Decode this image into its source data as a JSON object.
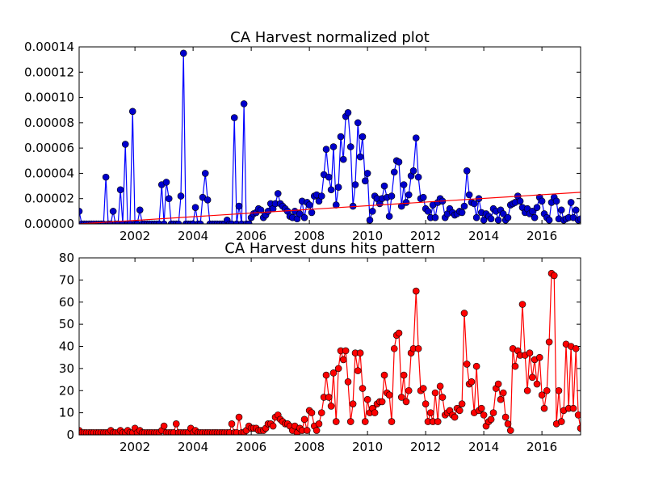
{
  "chart_data": [
    {
      "type": "line",
      "title": "CA Harvest normalized plot",
      "x": [
        2000.08,
        2000.17,
        2000.25,
        2000.33,
        2000.42,
        2000.5,
        2000.58,
        2000.67,
        2000.75,
        2000.83,
        2000.92,
        2001.0,
        2001.08,
        2001.17,
        2001.25,
        2001.33,
        2001.42,
        2001.5,
        2001.58,
        2001.67,
        2001.75,
        2001.83,
        2001.92,
        2002.0,
        2002.08,
        2002.17,
        2002.25,
        2002.33,
        2002.42,
        2002.5,
        2002.58,
        2002.67,
        2002.75,
        2002.83,
        2002.92,
        2003.0,
        2003.08,
        2003.17,
        2003.25,
        2003.33,
        2003.42,
        2003.5,
        2003.58,
        2003.67,
        2003.75,
        2003.83,
        2003.92,
        2004.0,
        2004.08,
        2004.17,
        2004.25,
        2004.33,
        2004.42,
        2004.5,
        2004.58,
        2004.67,
        2004.75,
        2004.83,
        2004.92,
        2005.0,
        2005.08,
        2005.17,
        2005.25,
        2005.33,
        2005.42,
        2005.5,
        2005.58,
        2005.67,
        2005.75,
        2005.83,
        2005.92,
        2006.0,
        2006.08,
        2006.17,
        2006.25,
        2006.33,
        2006.42,
        2006.5,
        2006.58,
        2006.67,
        2006.75,
        2006.83,
        2006.92,
        2007.0,
        2007.08,
        2007.17,
        2007.25,
        2007.33,
        2007.42,
        2007.5,
        2007.58,
        2007.67,
        2007.75,
        2007.83,
        2007.92,
        2008.0,
        2008.08,
        2008.17,
        2008.25,
        2008.33,
        2008.42,
        2008.5,
        2008.58,
        2008.67,
        2008.75,
        2008.83,
        2008.92,
        2009.0,
        2009.08,
        2009.17,
        2009.25,
        2009.33,
        2009.42,
        2009.5,
        2009.58,
        2009.67,
        2009.75,
        2009.83,
        2009.92,
        2010.0,
        2010.08,
        2010.17,
        2010.25,
        2010.33,
        2010.42,
        2010.5,
        2010.58,
        2010.67,
        2010.75,
        2010.83,
        2010.92,
        2011.0,
        2011.08,
        2011.17,
        2011.25,
        2011.33,
        2011.42,
        2011.5,
        2011.58,
        2011.67,
        2011.75,
        2011.83,
        2011.92,
        2012.0,
        2012.08,
        2012.17,
        2012.25,
        2012.33,
        2012.42,
        2012.5,
        2012.58,
        2012.67,
        2012.75,
        2012.83,
        2012.92,
        2013.0,
        2013.08,
        2013.17,
        2013.25,
        2013.33,
        2013.42,
        2013.5,
        2013.58,
        2013.67,
        2013.75,
        2013.83,
        2013.92,
        2014.0,
        2014.08,
        2014.17,
        2014.25,
        2014.33,
        2014.42,
        2014.5,
        2014.58,
        2014.67,
        2014.75,
        2014.83,
        2014.92,
        2015.0,
        2015.08,
        2015.17,
        2015.25,
        2015.33,
        2015.42,
        2015.5,
        2015.58,
        2015.67,
        2015.75,
        2015.83,
        2015.92,
        2016.0,
        2016.08,
        2016.17,
        2016.25,
        2016.33,
        2016.42,
        2016.5,
        2016.58,
        2016.67,
        2016.75,
        2016.83,
        2016.92,
        2017.0,
        2017.08,
        2017.17,
        2017.25,
        2017.33
      ],
      "series": [
        {
          "color": "#0000ff",
          "values": [
            1e-05,
            0,
            0,
            0,
            0,
            0,
            0,
            0,
            0,
            0,
            0,
            3.7e-05,
            0,
            0,
            1e-05,
            0,
            0,
            2.7e-05,
            0,
            6.3e-05,
            0,
            0,
            8.9e-05,
            0,
            0,
            1.1e-05,
            0,
            0,
            0,
            0,
            0,
            0,
            0,
            0,
            3.1e-05,
            0,
            3.3e-05,
            2e-05,
            0,
            0,
            0,
            0,
            2.2e-05,
            0.000135,
            0,
            0,
            0,
            0,
            1.3e-05,
            0,
            0,
            2.1e-05,
            4e-05,
            1.9e-05,
            0,
            0,
            0,
            0,
            0,
            0,
            0,
            3e-06,
            0,
            0,
            8.4e-05,
            0,
            1.4e-05,
            0,
            9.5e-05,
            0,
            0,
            5e-06,
            8e-06,
            9e-06,
            1.2e-05,
            1.1e-05,
            5e-06,
            7e-06,
            1e-05,
            1.6e-05,
            1.2e-05,
            1.6e-05,
            2.4e-05,
            1.6e-05,
            1.4e-05,
            1.2e-05,
            1e-05,
            6e-06,
            5e-06,
            1e-05,
            4e-06,
            8e-06,
            1.8e-05,
            5e-06,
            1.7e-05,
            1.5e-05,
            9e-06,
            2.2e-05,
            2.3e-05,
            1.8e-05,
            2.2e-05,
            3.9e-05,
            5.9e-05,
            3.7e-05,
            2.7e-05,
            6.1e-05,
            1.5e-05,
            2.9e-05,
            6.9e-05,
            5.1e-05,
            8.5e-05,
            8.8e-05,
            6.1e-05,
            1.4e-05,
            3.1e-05,
            8e-05,
            5.3e-05,
            6.9e-05,
            3.4e-05,
            4e-05,
            3e-06,
            1e-05,
            2.2e-05,
            2e-05,
            1.6e-05,
            2e-05,
            3e-05,
            2.1e-05,
            6e-06,
            2.2e-05,
            4.1e-05,
            5e-05,
            4.9e-05,
            1.4e-05,
            3.1e-05,
            1.7e-05,
            2.3e-05,
            3.8e-05,
            4.2e-05,
            6.8e-05,
            3.7e-05,
            2e-05,
            2.1e-05,
            1.2e-05,
            1e-05,
            5e-06,
            1.5e-05,
            5e-06,
            1.7e-05,
            2e-05,
            1.8e-05,
            5e-06,
            8e-06,
            1.2e-05,
            9e-06,
            7e-06,
            8e-06,
            1e-05,
            9e-06,
            1.4e-05,
            4.2e-05,
            2.3e-05,
            1.7e-05,
            1.6e-05,
            5e-06,
            2e-05,
            9e-06,
            3e-06,
            8e-06,
            6e-06,
            4e-06,
            1.2e-05,
            1e-05,
            3e-06,
            1.1e-05,
            8e-06,
            3e-06,
            5e-06,
            1.5e-05,
            1.6e-05,
            1.7e-05,
            2.2e-05,
            1.8e-05,
            1.3e-05,
            9e-06,
            1.2e-05,
            8e-06,
            1e-05,
            5e-06,
            1.3e-05,
            2.1e-05,
            1.8e-05,
            8e-06,
            5e-06,
            3e-06,
            1.7e-05,
            2.1e-05,
            1.8e-05,
            4e-06,
            1.1e-05,
            3e-06,
            4e-06,
            5e-06,
            1.7e-05,
            5e-06,
            1.1e-05,
            3e-06,
            4e-06
          ]
        },
        {
          "color": "#ff0000",
          "x": [
            2000.08,
            2017.33
          ],
          "values": [
            0,
            2.5e-05
          ]
        }
      ],
      "xlim": [
        2000.08,
        2017.33
      ],
      "xticks": [
        2002,
        2004,
        2006,
        2008,
        2010,
        2012,
        2014,
        2016
      ],
      "ylim": [
        0,
        0.00014
      ],
      "yticks": [
        {
          "value": 0,
          "label": "0.00000"
        },
        {
          "value": 2e-05,
          "label": "0.00002"
        },
        {
          "value": 4e-05,
          "label": "0.00004"
        },
        {
          "value": 6e-05,
          "label": "0.00006"
        },
        {
          "value": 8e-05,
          "label": "0.00008"
        },
        {
          "value": 0.0001,
          "label": "0.00010"
        },
        {
          "value": 0.00012,
          "label": "0.00012"
        },
        {
          "value": 0.00014,
          "label": "0.00014"
        }
      ]
    },
    {
      "type": "line",
      "title": "CA Harvest duns hits pattern",
      "x": [
        2000.08,
        2000.17,
        2000.25,
        2000.33,
        2000.42,
        2000.5,
        2000.58,
        2000.67,
        2000.75,
        2000.83,
        2000.92,
        2001.0,
        2001.08,
        2001.17,
        2001.25,
        2001.33,
        2001.42,
        2001.5,
        2001.58,
        2001.67,
        2001.75,
        2001.83,
        2001.92,
        2002.0,
        2002.08,
        2002.17,
        2002.25,
        2002.33,
        2002.42,
        2002.5,
        2002.58,
        2002.67,
        2002.75,
        2002.83,
        2002.92,
        2003.0,
        2003.08,
        2003.17,
        2003.25,
        2003.33,
        2003.42,
        2003.5,
        2003.58,
        2003.67,
        2003.75,
        2003.83,
        2003.92,
        2004.0,
        2004.08,
        2004.17,
        2004.25,
        2004.33,
        2004.42,
        2004.5,
        2004.58,
        2004.67,
        2004.75,
        2004.83,
        2004.92,
        2005.0,
        2005.08,
        2005.17,
        2005.25,
        2005.33,
        2005.42,
        2005.5,
        2005.58,
        2005.67,
        2005.75,
        2005.83,
        2005.92,
        2006.0,
        2006.08,
        2006.17,
        2006.25,
        2006.33,
        2006.42,
        2006.5,
        2006.58,
        2006.67,
        2006.75,
        2006.83,
        2006.92,
        2007.0,
        2007.08,
        2007.17,
        2007.25,
        2007.33,
        2007.42,
        2007.5,
        2007.58,
        2007.67,
        2007.75,
        2007.83,
        2007.92,
        2008.0,
        2008.08,
        2008.17,
        2008.25,
        2008.33,
        2008.42,
        2008.5,
        2008.58,
        2008.67,
        2008.75,
        2008.83,
        2008.92,
        2009.0,
        2009.08,
        2009.17,
        2009.25,
        2009.33,
        2009.42,
        2009.5,
        2009.58,
        2009.67,
        2009.75,
        2009.83,
        2009.92,
        2010.0,
        2010.08,
        2010.17,
        2010.25,
        2010.33,
        2010.42,
        2010.5,
        2010.58,
        2010.67,
        2010.75,
        2010.83,
        2010.92,
        2011.0,
        2011.08,
        2011.17,
        2011.25,
        2011.33,
        2011.42,
        2011.5,
        2011.58,
        2011.67,
        2011.75,
        2011.83,
        2011.92,
        2012.0,
        2012.08,
        2012.17,
        2012.25,
        2012.33,
        2012.42,
        2012.5,
        2012.58,
        2012.67,
        2012.75,
        2012.83,
        2012.92,
        2013.0,
        2013.08,
        2013.17,
        2013.25,
        2013.33,
        2013.42,
        2013.5,
        2013.58,
        2013.67,
        2013.75,
        2013.83,
        2013.92,
        2014.0,
        2014.08,
        2014.17,
        2014.25,
        2014.33,
        2014.42,
        2014.5,
        2014.58,
        2014.67,
        2014.75,
        2014.83,
        2014.92,
        2015.0,
        2015.08,
        2015.17,
        2015.25,
        2015.33,
        2015.42,
        2015.5,
        2015.58,
        2015.67,
        2015.75,
        2015.83,
        2015.92,
        2016.0,
        2016.08,
        2016.17,
        2016.25,
        2016.33,
        2016.42,
        2016.5,
        2016.58,
        2016.67,
        2016.75,
        2016.83,
        2016.92,
        2017.0,
        2017.08,
        2017.17,
        2017.25,
        2017.33
      ],
      "series": [
        {
          "color": "#ff0000",
          "values": [
            2,
            1,
            1,
            1,
            1,
            1,
            1,
            1,
            1,
            1,
            1,
            1,
            1,
            2,
            1,
            1,
            1,
            2,
            1,
            1,
            2,
            1,
            1,
            3,
            1,
            2,
            1,
            1,
            1,
            1,
            1,
            1,
            1,
            1,
            2,
            4,
            1,
            1,
            1,
            1,
            5,
            1,
            1,
            1,
            1,
            1,
            3,
            1,
            2,
            1,
            1,
            1,
            1,
            1,
            1,
            1,
            1,
            1,
            1,
            1,
            1,
            1,
            1,
            5,
            1,
            1,
            8,
            1,
            1,
            2,
            4,
            3,
            3,
            3,
            2,
            2,
            2,
            3,
            5,
            5,
            4,
            8,
            9,
            7,
            6,
            5,
            5,
            4,
            2,
            4,
            1,
            3,
            2,
            7,
            2,
            11,
            10,
            4,
            2,
            5,
            10,
            17,
            27,
            17,
            13,
            28,
            6,
            30,
            38,
            34,
            38,
            24,
            6,
            14,
            37,
            29,
            37,
            21,
            6,
            16,
            10,
            12,
            10,
            14,
            15,
            15,
            27,
            19,
            18,
            6,
            39,
            45,
            46,
            17,
            27,
            15,
            20,
            37,
            39,
            65,
            39,
            20,
            21,
            14,
            6,
            10,
            6,
            19,
            6,
            22,
            17,
            9,
            10,
            11,
            9,
            8,
            12,
            11,
            14,
            55,
            32,
            23,
            24,
            10,
            31,
            11,
            12,
            9,
            4,
            6,
            7,
            10,
            21,
            23,
            16,
            19,
            8,
            5,
            2,
            39,
            31,
            38,
            36,
            59,
            36,
            20,
            37,
            26,
            34,
            23,
            35,
            18,
            12,
            20,
            42,
            73,
            72,
            5,
            20,
            6,
            11,
            41,
            12,
            40,
            12,
            39,
            9,
            3
          ]
        }
      ],
      "xlim": [
        2000.08,
        2017.33
      ],
      "xticks": [
        2002,
        2004,
        2006,
        2008,
        2010,
        2012,
        2014,
        2016
      ],
      "ylim": [
        0,
        80
      ],
      "yticks": [
        0,
        10,
        20,
        30,
        40,
        50,
        60,
        70,
        80
      ]
    }
  ]
}
